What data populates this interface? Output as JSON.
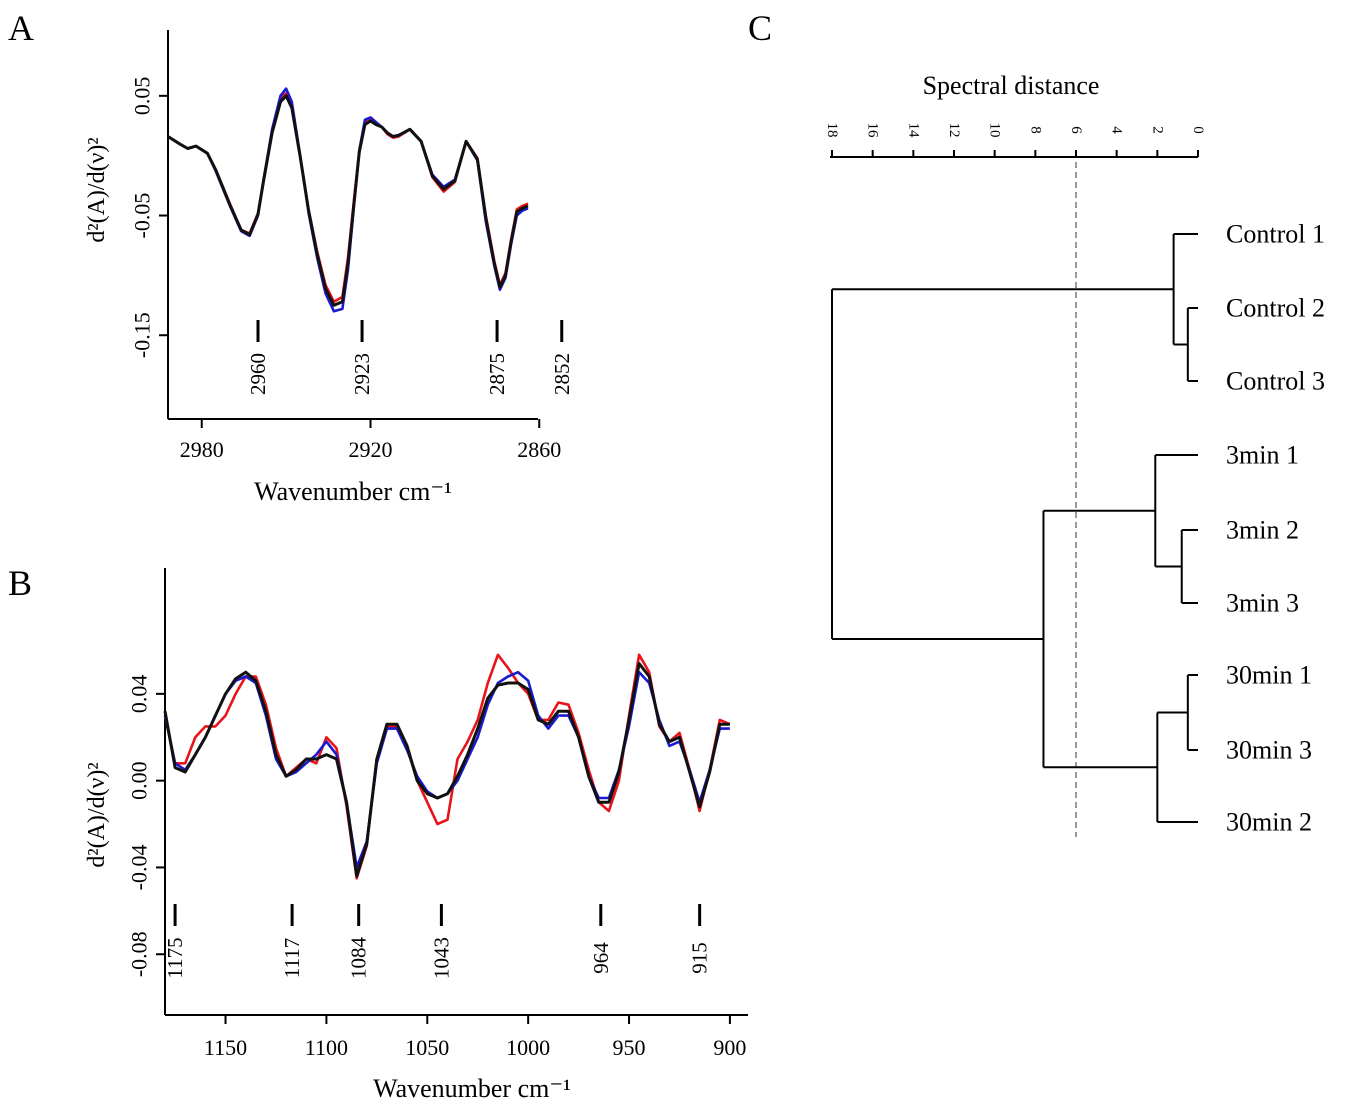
{
  "panels": {
    "A": "A",
    "B": "B",
    "C": "C"
  },
  "series_colors": [
    "#e8141a",
    "#1a1acf",
    "#111111"
  ],
  "chart_data": [
    {
      "id": "A",
      "type": "line",
      "xlabel": "Wavenumber cm⁻¹",
      "ylabel": "d²(A)/d(ν)²",
      "xlim": [
        2992,
        2864
      ],
      "ylim": [
        -0.22,
        0.105
      ],
      "xticks": [
        2980,
        2920,
        2860
      ],
      "xtick_labels": [
        "2980",
        "2920",
        "2860"
      ],
      "yticks": [
        0.05,
        -0.05,
        -0.15
      ],
      "ytick_labels": [
        "0.05",
        "-0.05",
        "-0.15"
      ],
      "peaks": [
        {
          "x": 2960,
          "label": "2960"
        },
        {
          "x": 2923,
          "label": "2923"
        },
        {
          "x": 2875,
          "label": "2875"
        },
        {
          "x": 2852,
          "label": "2852"
        }
      ],
      "x": [
        2992,
        2988,
        2985,
        2982,
        2978,
        2975,
        2970,
        2966,
        2963,
        2960,
        2958,
        2955,
        2952,
        2950,
        2948,
        2945,
        2942,
        2939,
        2936,
        2933,
        2930,
        2928,
        2926,
        2924,
        2922,
        2920,
        2918,
        2916,
        2914,
        2912,
        2910,
        2906,
        2902,
        2898,
        2894,
        2890,
        2886,
        2882,
        2879,
        2876,
        2874,
        2872,
        2870,
        2868,
        2866,
        2864
      ],
      "series": [
        {
          "values": [
            0.016,
            0.01,
            0.006,
            0.008,
            0.002,
            -0.012,
            -0.04,
            -0.062,
            -0.065,
            -0.048,
            -0.02,
            0.02,
            0.048,
            0.052,
            0.042,
            0.0,
            -0.045,
            -0.08,
            -0.108,
            -0.122,
            -0.118,
            -0.085,
            -0.04,
            0.005,
            0.028,
            0.03,
            0.027,
            0.024,
            0.018,
            0.015,
            0.016,
            0.022,
            0.012,
            -0.018,
            -0.03,
            -0.022,
            0.012,
            -0.002,
            -0.05,
            -0.088,
            -0.108,
            -0.098,
            -0.07,
            -0.045,
            -0.042,
            -0.04
          ]
        },
        {
          "values": [
            0.016,
            0.01,
            0.006,
            0.008,
            0.002,
            -0.013,
            -0.042,
            -0.063,
            -0.067,
            -0.05,
            -0.02,
            0.022,
            0.05,
            0.056,
            0.045,
            0.0,
            -0.048,
            -0.085,
            -0.115,
            -0.13,
            -0.128,
            -0.095,
            -0.045,
            0.004,
            0.03,
            0.032,
            0.028,
            0.024,
            0.019,
            0.016,
            0.017,
            0.022,
            0.012,
            -0.016,
            -0.026,
            -0.02,
            0.012,
            -0.004,
            -0.055,
            -0.092,
            -0.112,
            -0.102,
            -0.074,
            -0.05,
            -0.046,
            -0.044
          ]
        },
        {
          "values": [
            0.016,
            0.01,
            0.006,
            0.008,
            0.002,
            -0.012,
            -0.041,
            -0.062,
            -0.066,
            -0.049,
            -0.021,
            0.019,
            0.045,
            0.05,
            0.04,
            -0.001,
            -0.046,
            -0.082,
            -0.111,
            -0.125,
            -0.122,
            -0.09,
            -0.043,
            0.003,
            0.026,
            0.029,
            0.026,
            0.024,
            0.019,
            0.016,
            0.017,
            0.022,
            0.012,
            -0.017,
            -0.028,
            -0.021,
            0.012,
            -0.003,
            -0.052,
            -0.09,
            -0.11,
            -0.1,
            -0.072,
            -0.047,
            -0.044,
            -0.042
          ]
        }
      ]
    },
    {
      "id": "B",
      "type": "line",
      "xlabel": "Wavenumber cm⁻¹",
      "ylabel": "d²(A)/d(ν)²",
      "xlim": [
        1180,
        895
      ],
      "ylim": [
        -0.108,
        0.098
      ],
      "xticks": [
        1150,
        1100,
        1050,
        1000,
        950,
        900
      ],
      "xtick_labels": [
        "1150",
        "1100",
        "1050",
        "1000",
        "950",
        "900"
      ],
      "yticks": [
        0.04,
        0.0,
        -0.04,
        -0.08
      ],
      "ytick_labels": [
        "0.04",
        "0.00",
        "-0.04",
        "-0.08"
      ],
      "peaks": [
        {
          "x": 1175,
          "label": "1175"
        },
        {
          "x": 1117,
          "label": "1117"
        },
        {
          "x": 1084,
          "label": "1084"
        },
        {
          "x": 1043,
          "label": "1043"
        },
        {
          "x": 964,
          "label": "964"
        },
        {
          "x": 915,
          "label": "915"
        }
      ],
      "x": [
        1180,
        1175,
        1170,
        1165,
        1160,
        1155,
        1150,
        1145,
        1140,
        1135,
        1130,
        1125,
        1120,
        1115,
        1110,
        1105,
        1100,
        1095,
        1090,
        1085,
        1080,
        1075,
        1070,
        1065,
        1060,
        1055,
        1050,
        1045,
        1040,
        1035,
        1030,
        1025,
        1020,
        1015,
        1010,
        1005,
        1000,
        995,
        990,
        985,
        980,
        975,
        970,
        965,
        960,
        955,
        950,
        945,
        940,
        935,
        930,
        925,
        920,
        915,
        910,
        905,
        900
      ],
      "series": [
        {
          "values": [
            0.03,
            0.008,
            0.008,
            0.02,
            0.025,
            0.025,
            0.03,
            0.04,
            0.048,
            0.048,
            0.035,
            0.015,
            0.002,
            0.006,
            0.01,
            0.008,
            0.02,
            0.015,
            -0.012,
            -0.045,
            -0.03,
            0.01,
            0.025,
            0.025,
            0.015,
            0.0,
            -0.01,
            -0.02,
            -0.018,
            0.01,
            0.018,
            0.028,
            0.045,
            0.058,
            0.052,
            0.045,
            0.04,
            0.028,
            0.028,
            0.036,
            0.035,
            0.022,
            0.005,
            -0.01,
            -0.014,
            0.0,
            0.03,
            0.058,
            0.05,
            0.025,
            0.018,
            0.022,
            0.005,
            -0.014,
            0.005,
            0.028,
            0.026
          ]
        },
        {
          "values": [
            0.03,
            0.008,
            0.005,
            0.012,
            0.02,
            0.03,
            0.04,
            0.046,
            0.048,
            0.045,
            0.03,
            0.01,
            0.002,
            0.004,
            0.008,
            0.012,
            0.018,
            0.012,
            -0.01,
            -0.04,
            -0.028,
            0.008,
            0.024,
            0.024,
            0.014,
            0.002,
            -0.005,
            -0.008,
            -0.006,
            0.0,
            0.01,
            0.02,
            0.035,
            0.045,
            0.048,
            0.05,
            0.046,
            0.03,
            0.024,
            0.03,
            0.03,
            0.02,
            0.002,
            -0.008,
            -0.008,
            0.005,
            0.025,
            0.05,
            0.045,
            0.028,
            0.016,
            0.018,
            0.005,
            -0.01,
            0.005,
            0.024,
            0.024
          ]
        },
        {
          "values": [
            0.032,
            0.006,
            0.004,
            0.012,
            0.02,
            0.03,
            0.04,
            0.047,
            0.05,
            0.046,
            0.032,
            0.012,
            0.002,
            0.005,
            0.01,
            0.01,
            0.012,
            0.01,
            -0.01,
            -0.044,
            -0.029,
            0.01,
            0.026,
            0.026,
            0.016,
            0.0,
            -0.006,
            -0.008,
            -0.006,
            0.002,
            0.012,
            0.024,
            0.038,
            0.044,
            0.045,
            0.045,
            0.042,
            0.028,
            0.026,
            0.032,
            0.032,
            0.02,
            0.002,
            -0.01,
            -0.01,
            0.004,
            0.028,
            0.054,
            0.048,
            0.026,
            0.018,
            0.02,
            0.004,
            -0.012,
            0.004,
            0.026,
            0.026
          ]
        }
      ]
    },
    {
      "id": "C",
      "type": "dendrogram",
      "title": "Spectral distance",
      "xlim": [
        18,
        0
      ],
      "ticks": [
        18,
        16,
        14,
        12,
        10,
        8,
        6,
        4,
        2,
        0
      ],
      "tick_labels": [
        "18",
        "16",
        "14",
        "12",
        "10",
        "8",
        "6",
        "4",
        "2",
        "0"
      ],
      "cut_height": 6,
      "leaves": [
        "Control 1",
        "Control 2",
        "Control 3",
        "3min 1",
        "3min 2",
        "3min 3",
        "30min 1",
        "30min 3",
        "30min 2"
      ],
      "merges": [
        {
          "a": "Control 2",
          "b": "Control 3",
          "height": 0.5
        },
        {
          "a": "3min 2",
          "b": "3min 3",
          "height": 0.8
        },
        {
          "a": "30min 1",
          "b": "30min 3",
          "height": 0.5
        },
        {
          "a": "Control 1",
          "b": "(Control 2, Control 3)",
          "height": 1.2
        },
        {
          "a": "3min 1",
          "b": "(3min 2, 3min 3)",
          "height": 2.1
        },
        {
          "a": "(30min 1, 30min 3)",
          "b": "30min 2",
          "height": 2.0
        },
        {
          "a": "3min",
          "b": "30min",
          "height": 7.6
        },
        {
          "a": "Control",
          "b": "3min + 30min",
          "height": 18.0
        }
      ]
    }
  ]
}
